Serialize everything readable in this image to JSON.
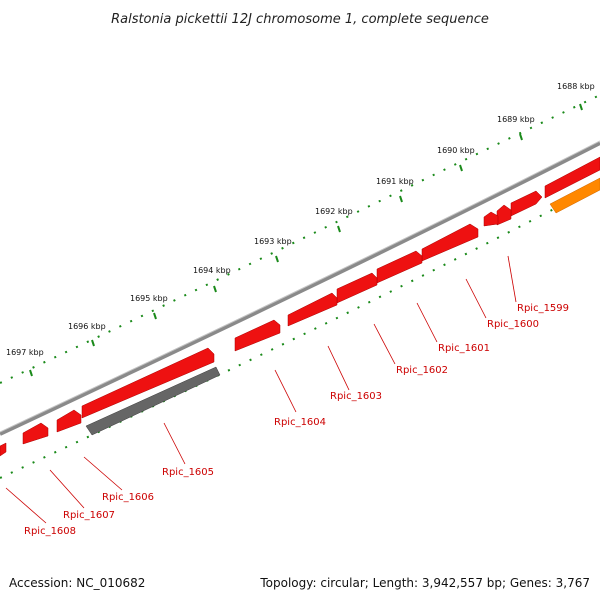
{
  "title": "Ralstonia pickettii 12J chromosome 1, complete sequence",
  "accession": "Accession: NC_010682",
  "topology": "Topology: circular; Length: 3,942,557 bp; Genes: 3,767",
  "colors": {
    "backbone": "#8a8a8a",
    "gene_red": "#ee1111",
    "gene_gray": "#666666",
    "gene_orange": "#ff8800",
    "tick": "#1a8a1a",
    "label": "#cc0000"
  },
  "scale_labels": [
    "1688 kbp",
    "1689 kbp",
    "1690 kbp",
    "1691 kbp",
    "1692 kbp",
    "1693 kbp",
    "1694 kbp",
    "1695 kbp",
    "1696 kbp",
    "1697 kbp"
  ],
  "gene_labels": [
    "Rpic_1599",
    "Rpic_1600",
    "Rpic_1601",
    "Rpic_1602",
    "Rpic_1603",
    "Rpic_1604",
    "Rpic_1605",
    "Rpic_1606",
    "Rpic_1607",
    "Rpic_1608"
  ]
}
